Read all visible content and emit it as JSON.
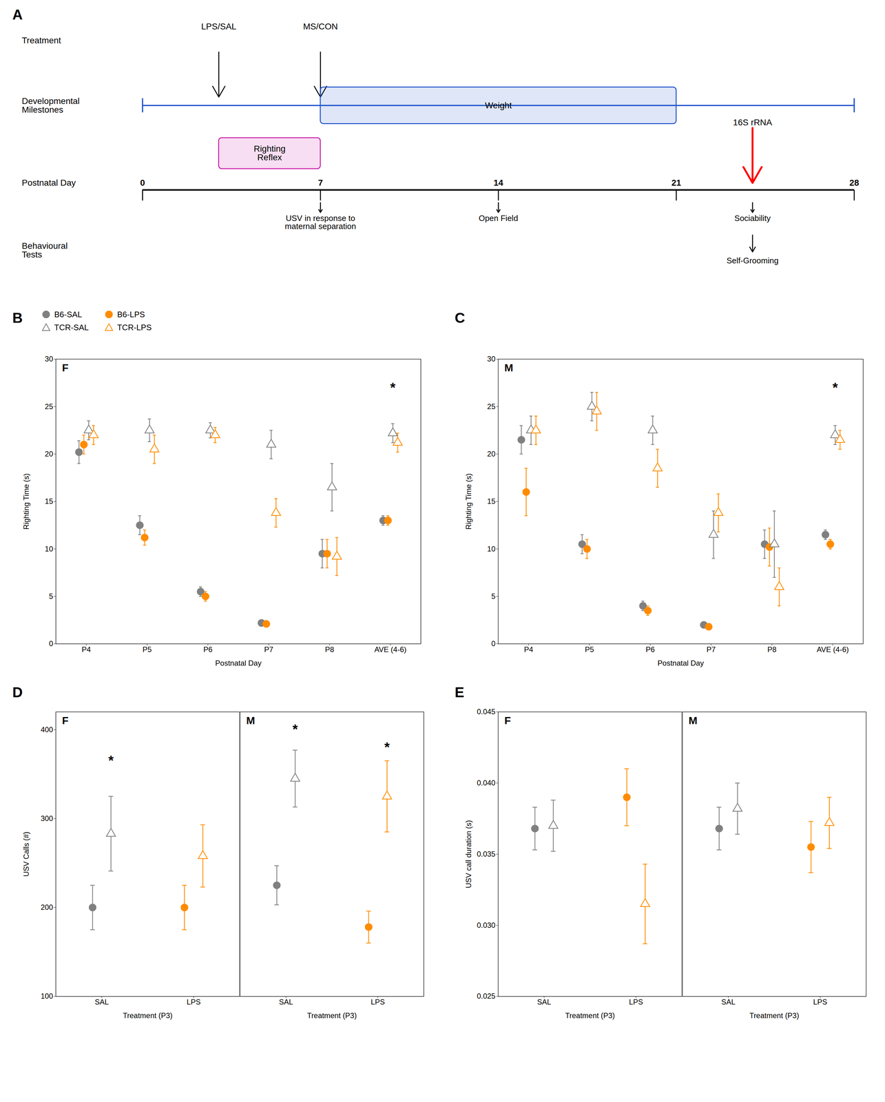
{
  "chart_data": [
    {
      "panel": "A",
      "type": "timeline",
      "xlabel": "Postnatal Day",
      "xlim": [
        0,
        28
      ],
      "xticks": [
        0,
        7,
        14,
        21,
        28
      ],
      "rows": [
        "Treatment",
        "Developmental\nMilestones",
        "Behavioural\nTests"
      ],
      "ranges": [
        {
          "row": "Developmental\nMilestones",
          "label": "Weight",
          "start": 7,
          "end": 21,
          "color": "#2255CC"
        },
        {
          "row": "Developmental\nMilestones",
          "label": "Righting\nReflex",
          "start": 3,
          "end": 7,
          "color": "#CC22AA"
        }
      ],
      "events": [
        {
          "row": "Treatment",
          "label": "LPS/SAL",
          "x": 3
        },
        {
          "row": "Treatment",
          "label": "MS/CON",
          "x": 7
        },
        {
          "row": "Developmental\nMilestones",
          "label": "16S rRNA",
          "x": 24,
          "color": "red"
        },
        {
          "row": "Behavioural\nTests",
          "label": "USV in response to\nmaternal separation",
          "x": 7
        },
        {
          "row": "Behavioural\nTests",
          "label": "Open Field",
          "x": 14
        },
        {
          "row": "Behavioural\nTests",
          "label": "Sociability",
          "x": 24
        },
        {
          "row": "Behavioural\nTests",
          "label": "Self-Grooming",
          "x": 24
        }
      ]
    },
    {
      "panel": "B",
      "type": "scatter",
      "title": "F",
      "xlabel": "Postnatal Day",
      "ylabel": "Righting Time (s)",
      "categories": [
        "P4",
        "P5",
        "P6",
        "P7",
        "P8",
        "AVE (4-6)"
      ],
      "ylim": [
        0,
        30
      ],
      "yticks": [
        0,
        5,
        10,
        15,
        20,
        25,
        30
      ],
      "legend": "top",
      "series": [
        {
          "name": "B6-SAL",
          "color": "#808080",
          "marker": "circle",
          "values": [
            20.2,
            12.5,
            5.5,
            2.2,
            9.5,
            13.0
          ],
          "errors": [
            1.2,
            1.0,
            0.5,
            0.2,
            1.5,
            0.5
          ]
        },
        {
          "name": "B6-LPS",
          "color": "#FF8C00",
          "marker": "circle",
          "values": [
            21.0,
            11.2,
            5.0,
            2.1,
            9.5,
            13.0
          ],
          "errors": [
            1.0,
            0.8,
            0.5,
            0.15,
            1.5,
            0.5
          ]
        },
        {
          "name": "TCR-SAL",
          "color": "#808080",
          "marker": "triangle-open",
          "values": [
            22.5,
            22.5,
            22.5,
            21.0,
            16.5,
            22.2
          ],
          "errors": [
            1.0,
            1.2,
            0.8,
            1.5,
            2.5,
            1.0
          ]
        },
        {
          "name": "TCR-LPS",
          "color": "#FF8C00",
          "marker": "triangle-open",
          "values": [
            22.0,
            20.5,
            22.0,
            13.8,
            9.2,
            21.2
          ],
          "errors": [
            1.0,
            1.5,
            0.8,
            1.5,
            2.0,
            1.0
          ]
        }
      ],
      "annotations": [
        {
          "text": "*",
          "category": "AVE (4-6)",
          "series": "TCR-SAL",
          "y": 26.5
        }
      ]
    },
    {
      "panel": "C",
      "type": "scatter",
      "title": "M",
      "xlabel": "Postnatal Day",
      "ylabel": "Righting Time (s)",
      "categories": [
        "P4",
        "P5",
        "P6",
        "P7",
        "P8",
        "AVE (4-6)"
      ],
      "ylim": [
        0,
        30
      ],
      "yticks": [
        0,
        5,
        10,
        15,
        20,
        25,
        30
      ],
      "series": [
        {
          "name": "B6-SAL",
          "color": "#808080",
          "marker": "circle",
          "values": [
            21.5,
            10.5,
            4.0,
            2.0,
            10.5,
            11.5
          ],
          "errors": [
            1.5,
            1.0,
            0.5,
            0.15,
            1.5,
            0.5
          ]
        },
        {
          "name": "B6-LPS",
          "color": "#FF8C00",
          "marker": "circle",
          "values": [
            16.0,
            10.0,
            3.5,
            1.8,
            10.2,
            10.5
          ],
          "errors": [
            2.5,
            1.0,
            0.5,
            0.1,
            2.0,
            0.5
          ]
        },
        {
          "name": "TCR-SAL",
          "color": "#808080",
          "marker": "triangle-open",
          "values": [
            22.5,
            25.0,
            22.5,
            11.5,
            10.5,
            22.0
          ],
          "errors": [
            1.5,
            1.5,
            1.5,
            2.5,
            3.5,
            1.0
          ]
        },
        {
          "name": "TCR-LPS",
          "color": "#FF8C00",
          "marker": "triangle-open",
          "values": [
            22.5,
            24.5,
            18.5,
            13.8,
            6.0,
            21.5
          ],
          "errors": [
            1.5,
            2.0,
            2.0,
            2.0,
            2.0,
            1.0
          ]
        }
      ],
      "annotations": [
        {
          "text": "*",
          "category": "AVE (4-6)",
          "series": "TCR-SAL",
          "y": 26.5
        }
      ]
    },
    {
      "panel": "D",
      "type": "scatter",
      "xlabel": "Treatment (P3)",
      "ylabel": "USV Calls (#)",
      "categories": [
        "SAL",
        "LPS"
      ],
      "ylim": [
        100,
        420
      ],
      "yticks": [
        100,
        200,
        300,
        400
      ],
      "facets": [
        {
          "title": "F",
          "series": [
            {
              "name": "B6-SAL",
              "color": "#808080",
              "marker": "circle",
              "values": [
                200,
                null
              ],
              "errors": [
                25,
                null
              ]
            },
            {
              "name": "TCR-SAL",
              "color": "#808080",
              "marker": "triangle-open",
              "values": [
                283,
                null
              ],
              "errors": [
                42,
                null
              ]
            },
            {
              "name": "B6-LPS",
              "color": "#FF8C00",
              "marker": "circle",
              "values": [
                null,
                200
              ],
              "errors": [
                null,
                25
              ]
            },
            {
              "name": "TCR-LPS",
              "color": "#FF8C00",
              "marker": "triangle-open",
              "values": [
                null,
                258
              ],
              "errors": [
                null,
                35
              ]
            }
          ],
          "annotations": [
            {
              "text": "*",
              "category": "SAL",
              "series": "TCR-SAL",
              "y": 360
            }
          ]
        },
        {
          "title": "M",
          "tick_labels": "x",
          "series": [
            {
              "name": "B6-SAL",
              "color": "#808080",
              "marker": "circle",
              "values": [
                225,
                null
              ],
              "errors": [
                22,
                null
              ]
            },
            {
              "name": "TCR-SAL",
              "color": "#808080",
              "marker": "triangle-open",
              "values": [
                345,
                null
              ],
              "errors": [
                32,
                null
              ]
            },
            {
              "name": "B6-LPS",
              "color": "#FF8C00",
              "marker": "circle",
              "values": [
                null,
                178
              ],
              "errors": [
                null,
                18
              ]
            },
            {
              "name": "TCR-LPS",
              "color": "#FF8C00",
              "marker": "triangle-open",
              "values": [
                null,
                325
              ],
              "errors": [
                null,
                40
              ]
            }
          ],
          "annotations": [
            {
              "text": "*",
              "category": "SAL",
              "series": "TCR-SAL",
              "y": 395
            },
            {
              "text": "*",
              "category": "LPS",
              "series": "TCR-LPS",
              "y": 375
            }
          ]
        }
      ]
    },
    {
      "panel": "E",
      "type": "scatter",
      "xlabel": "Treatment (P3)",
      "ylabel": "USV call duration (s)",
      "categories": [
        "SAL",
        "LPS"
      ],
      "ylim": [
        0.025,
        0.045
      ],
      "yticks": [
        0.025,
        {
          "value": 0.03,
          "label": "0.030"
        },
        0.035,
        {
          "value": 0.04,
          "label": "0.040"
        },
        0.045
      ],
      "facets": [
        {
          "title": "F",
          "series": [
            {
              "name": "B6-SAL",
              "color": "#808080",
              "marker": "circle",
              "values": [
                0.0368,
                null
              ],
              "errors": [
                0.0015,
                null
              ]
            },
            {
              "name": "TCR-SAL",
              "color": "#808080",
              "marker": "triangle-open",
              "values": [
                0.037,
                null
              ],
              "errors": [
                0.0018,
                null
              ]
            },
            {
              "name": "B6-LPS",
              "color": "#FF8C00",
              "marker": "circle",
              "values": [
                null,
                0.039
              ],
              "errors": [
                null,
                0.002
              ]
            },
            {
              "name": "TCR-LPS",
              "color": "#FF8C00",
              "marker": "triangle-open",
              "values": [
                null,
                0.0315
              ],
              "errors": [
                null,
                0.0028
              ]
            }
          ]
        },
        {
          "title": "M",
          "tick_labels": "x",
          "series": [
            {
              "name": "B6-SAL",
              "color": "#808080",
              "marker": "circle",
              "values": [
                0.0368,
                null
              ],
              "errors": [
                0.0015,
                null
              ]
            },
            {
              "name": "TCR-SAL",
              "color": "#808080",
              "marker": "triangle-open",
              "values": [
                0.0382,
                null
              ],
              "errors": [
                0.0018,
                null
              ]
            },
            {
              "name": "B6-LPS",
              "color": "#FF8C00",
              "marker": "circle",
              "values": [
                null,
                0.0355
              ],
              "errors": [
                null,
                0.0018
              ]
            },
            {
              "name": "TCR-LPS",
              "color": "#FF8C00",
              "marker": "triangle-open",
              "values": [
                null,
                0.0372
              ],
              "errors": [
                null,
                0.0018
              ]
            }
          ]
        }
      ]
    }
  ]
}
